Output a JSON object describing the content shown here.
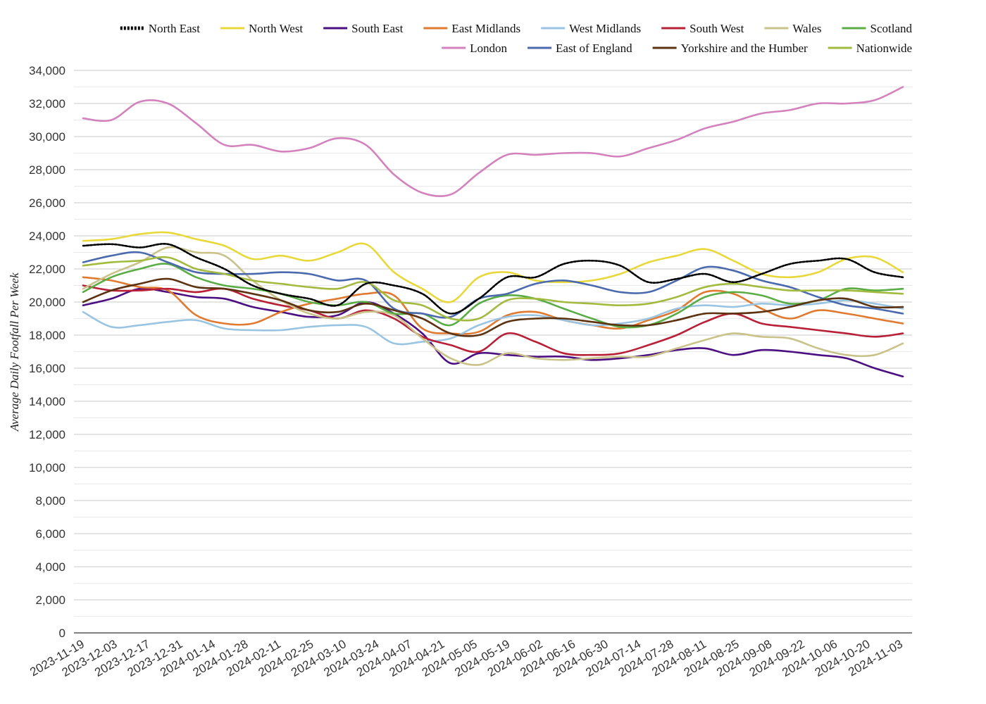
{
  "chart_data": {
    "type": "line",
    "title": "",
    "xlabel": "",
    "ylabel": "Average Daily Footfall Per Week",
    "ylim": [
      0,
      34000
    ],
    "yticks": [
      0,
      2000,
      4000,
      6000,
      8000,
      10000,
      12000,
      14000,
      16000,
      18000,
      20000,
      22000,
      24000,
      26000,
      28000,
      30000,
      32000,
      34000
    ],
    "ytick_labels": [
      "0",
      "2,000",
      "4,000",
      "6,000",
      "8,000",
      "10,000",
      "12,000",
      "14,000",
      "16,000",
      "18,000",
      "20,000",
      "22,000",
      "24,000",
      "26,000",
      "28,000",
      "30,000",
      "32,000",
      "34,000"
    ],
    "x_tick_labels": [
      "2023-11-19",
      "2023-12-03",
      "2023-12-17",
      "2023-12-31",
      "2024-01-14",
      "2024-01-28",
      "2024-02-11",
      "2024-02-25",
      "2024-03-10",
      "2024-03-24",
      "2024-04-07",
      "2024-04-21",
      "2024-05-05",
      "2024-05-19",
      "2024-06-02",
      "2024-06-16",
      "2024-06-30",
      "2024-07-14",
      "2024-07-28",
      "2024-08-11",
      "2024-08-25",
      "2024-09-08",
      "2024-09-22",
      "2024-10-06",
      "2024-10-20",
      "2024-11-03"
    ],
    "grid": true,
    "legend_position": "top",
    "series": [
      {
        "name": "North East",
        "color": "#000000",
        "dashed": true,
        "values": [
          23400,
          23500,
          23300,
          23500,
          22700,
          22000,
          21000,
          20500,
          20200,
          19800,
          21100,
          21000,
          20500,
          19300,
          20200,
          21500,
          21500,
          22300,
          22500,
          22200,
          21200,
          21400,
          21700,
          21200,
          21700,
          22300,
          22500,
          22600,
          21800,
          21500
        ]
      },
      {
        "name": "North West",
        "color": "#e8d93a",
        "dashed": false,
        "values": [
          23700,
          23800,
          24100,
          24200,
          23800,
          23400,
          22600,
          22800,
          22500,
          23000,
          23500,
          21800,
          20800,
          20000,
          21500,
          21800,
          21300,
          21200,
          21300,
          21700,
          22400,
          22800,
          23200,
          22500,
          21700,
          21500,
          21800,
          22600,
          22700,
          21800
        ]
      },
      {
        "name": "South East",
        "color": "#4b0f82",
        "dashed": false,
        "values": [
          19800,
          20200,
          20800,
          20600,
          20300,
          20200,
          19700,
          19400,
          19100,
          19200,
          20000,
          19300,
          18100,
          16300,
          16900,
          16800,
          16700,
          16700,
          16500,
          16600,
          16800,
          17100,
          17200,
          16800,
          17100,
          17000,
          16800,
          16600,
          16000,
          15500
        ]
      },
      {
        "name": "East Midlands",
        "color": "#e07a30",
        "dashed": false,
        "values": [
          21500,
          21300,
          20900,
          20700,
          19200,
          18700,
          18700,
          19400,
          19900,
          20200,
          20500,
          20400,
          18400,
          18100,
          18200,
          19200,
          19400,
          18900,
          18600,
          18400,
          18900,
          19500,
          20600,
          20500,
          19600,
          19000,
          19500,
          19300,
          19000,
          18700
        ]
      },
      {
        "name": "West Midlands",
        "color": "#99c5e3",
        "dashed": false,
        "values": [
          19400,
          18500,
          18600,
          18800,
          18900,
          18400,
          18300,
          18300,
          18500,
          18600,
          18500,
          17500,
          17600,
          17800,
          18600,
          19100,
          19200,
          18900,
          18600,
          18700,
          19000,
          19600,
          19800,
          19700,
          19900,
          19800,
          19900,
          20100,
          19900,
          19600
        ]
      },
      {
        "name": "South West",
        "color": "#b82037",
        "dashed": false,
        "values": [
          21000,
          20700,
          20700,
          20800,
          20600,
          20800,
          20200,
          19800,
          19500,
          19000,
          19500,
          19000,
          17900,
          17400,
          17000,
          18100,
          17600,
          16900,
          16800,
          16900,
          17400,
          18000,
          18800,
          19300,
          18700,
          18500,
          18300,
          18100,
          17900,
          18100
        ]
      },
      {
        "name": "Wales",
        "color": "#c9c289",
        "dashed": false,
        "values": [
          20800,
          21700,
          22400,
          23300,
          23000,
          22800,
          21300,
          20100,
          19300,
          19000,
          19400,
          19200,
          17800,
          16600,
          16200,
          16900,
          16600,
          16500,
          16600,
          16700,
          16700,
          17200,
          17700,
          18100,
          17900,
          17800,
          17200,
          16800,
          16800,
          17500
        ]
      },
      {
        "name": "Scotland",
        "color": "#5aad44",
        "dashed": false,
        "values": [
          20600,
          21500,
          22000,
          22300,
          21500,
          21000,
          20800,
          20500,
          20000,
          19800,
          20000,
          19300,
          19300,
          18600,
          19900,
          20400,
          20200,
          19600,
          19000,
          18500,
          18600,
          19300,
          20300,
          20600,
          20400,
          19900,
          20100,
          20800,
          20700,
          20800
        ]
      },
      {
        "name": "London",
        "color": "#d482bd",
        "dashed": false,
        "values": [
          31100,
          31000,
          32100,
          32000,
          30800,
          29500,
          29500,
          29100,
          29300,
          29900,
          29500,
          27700,
          26600,
          26500,
          27800,
          28900,
          28900,
          29000,
          29000,
          28800,
          29300,
          29800,
          30500,
          30900,
          31400,
          31600,
          32000,
          32000,
          32200,
          33000
        ]
      },
      {
        "name": "East of England",
        "color": "#4a6aad",
        "dashed": false,
        "values": [
          22400,
          22800,
          23000,
          22400,
          21800,
          21700,
          21700,
          21800,
          21700,
          21300,
          21300,
          19600,
          19300,
          19100,
          20200,
          20500,
          21100,
          21300,
          21000,
          20600,
          20600,
          21300,
          22100,
          21900,
          21300,
          20900,
          20300,
          19800,
          19600,
          19300
        ]
      },
      {
        "name": "Yorkshire and the Humber",
        "color": "#5c3210",
        "dashed": false,
        "values": [
          20000,
          20700,
          21100,
          21400,
          20900,
          20800,
          20500,
          20100,
          19500,
          19400,
          19900,
          19500,
          19000,
          18100,
          18000,
          18800,
          19000,
          19000,
          18800,
          18600,
          18600,
          18900,
          19300,
          19300,
          19400,
          19700,
          20100,
          20200,
          19700,
          19700
        ]
      },
      {
        "name": "Nationwide",
        "color": "#a2bb3e",
        "dashed": false,
        "values": [
          22200,
          22400,
          22500,
          22700,
          22000,
          21700,
          21300,
          21100,
          20900,
          20800,
          21200,
          20100,
          19800,
          19000,
          19000,
          20100,
          20200,
          20000,
          19900,
          19800,
          19900,
          20300,
          20900,
          21100,
          20900,
          20700,
          20700,
          20700,
          20600,
          20500
        ]
      }
    ]
  }
}
